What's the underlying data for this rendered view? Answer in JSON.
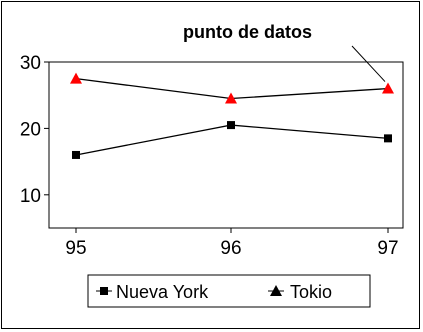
{
  "chart_data": {
    "type": "line",
    "title": "",
    "xlabel": "",
    "ylabel": "",
    "categories": [
      "95",
      "96",
      "97"
    ],
    "ylim": [
      5,
      30
    ],
    "yticks": [
      10,
      20,
      30
    ],
    "grid": false,
    "legend_position": "bottom",
    "annotation": {
      "text": "punto de datos",
      "series": "Tokio",
      "category": "97"
    },
    "series": [
      {
        "name": "Nueva York",
        "values": [
          16,
          20.5,
          18.5
        ],
        "line_color": "#000000",
        "marker": "square",
        "marker_color": "#000000"
      },
      {
        "name": "Tokio",
        "values": [
          27.5,
          24.5,
          26
        ],
        "line_color": "#000000",
        "marker": "triangle",
        "marker_color": "#ff0000",
        "legend_marker_color": "#000000"
      }
    ]
  }
}
